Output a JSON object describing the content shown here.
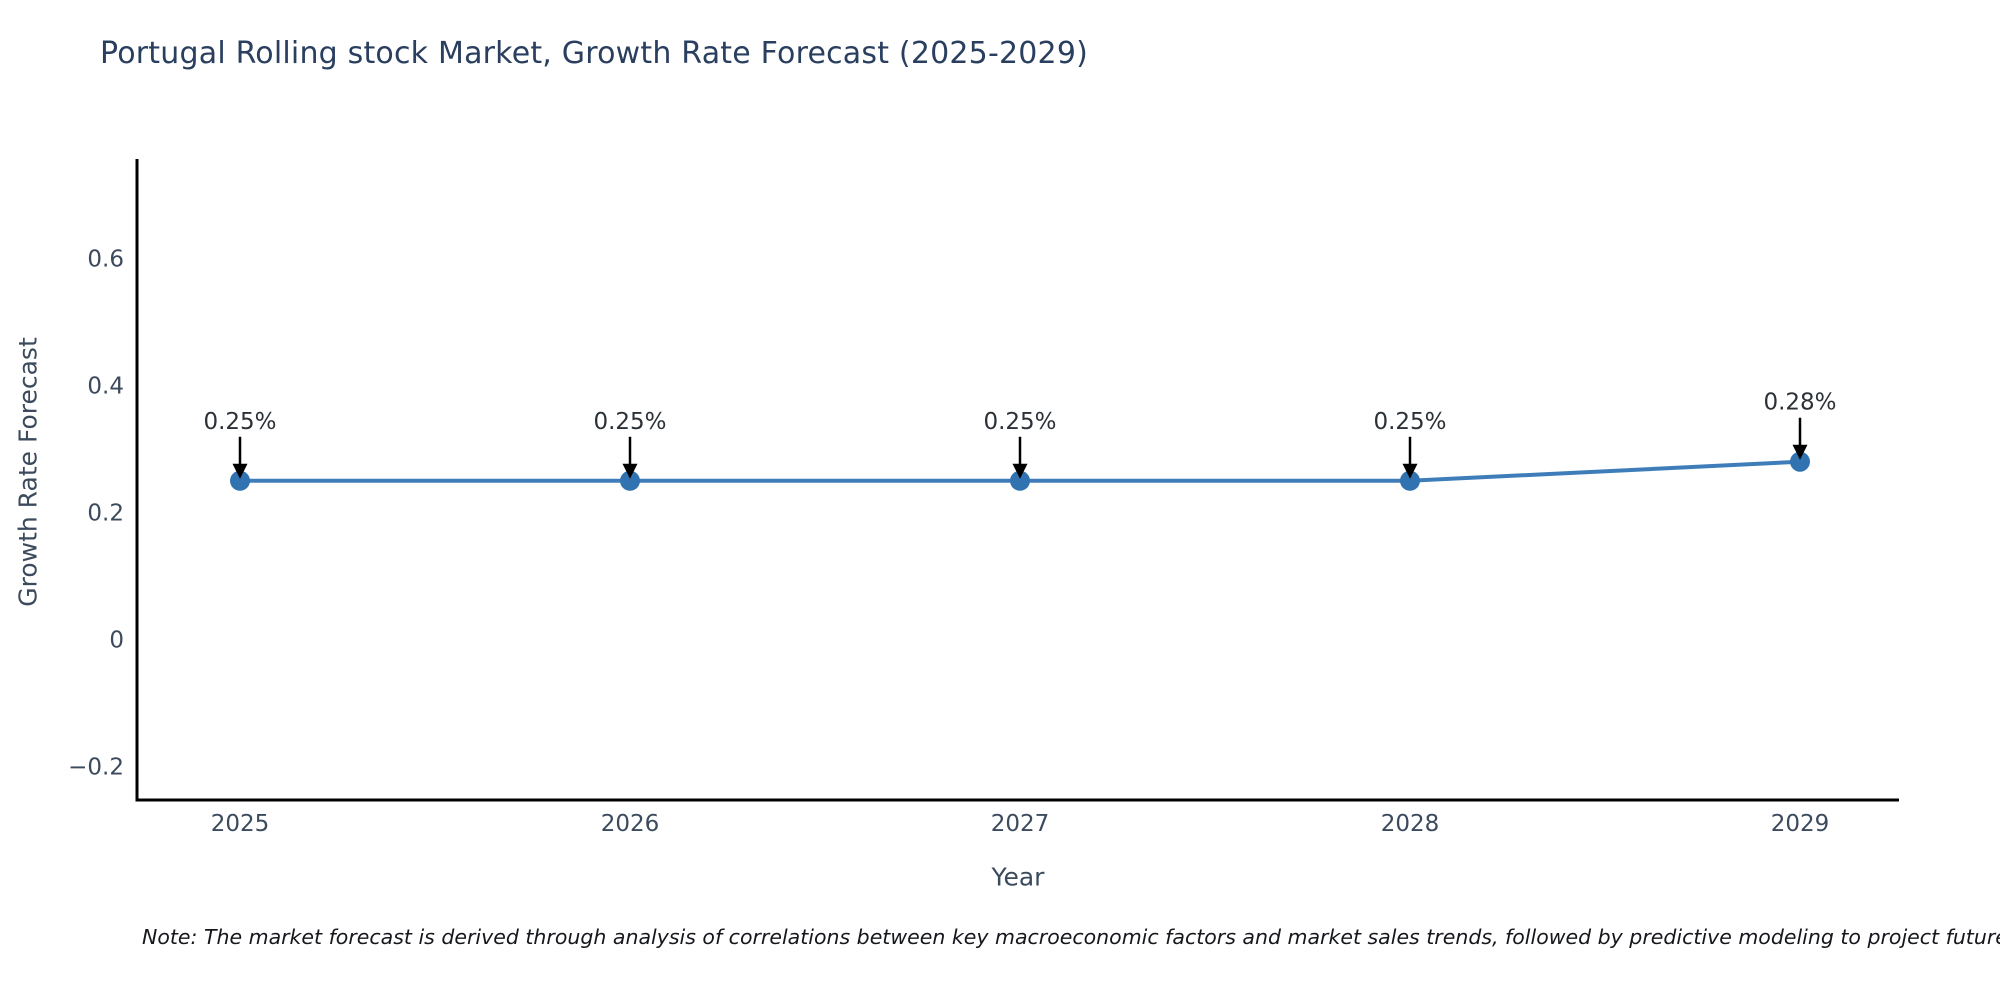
{
  "chart_data": {
    "type": "line",
    "title": "Portugal Rolling stock Market, Growth Rate Forecast (2025-2029)",
    "xlabel": "Year",
    "ylabel": "Growth Rate Forecast",
    "x": [
      2025,
      2026,
      2027,
      2028,
      2029
    ],
    "series": [
      {
        "name": "Growth Rate Forecast",
        "values": [
          0.25,
          0.25,
          0.25,
          0.25,
          0.28
        ]
      }
    ],
    "point_labels": [
      "0.25%",
      "0.25%",
      "0.25%",
      "0.25%",
      "0.28%"
    ],
    "yticks": [
      -0.2,
      0,
      0.2,
      0.4,
      0.6
    ],
    "ylim": [
      -0.253,
      0.757
    ],
    "grid": false,
    "legend_position": "none",
    "colors": {
      "line": "#3e7db9",
      "marker": "#3173b0",
      "arrow": "#000000",
      "axis": "#000000",
      "title_text": "#2a3f5f",
      "tick_text": "#3c4a5d",
      "annotation_text": "#2b3137"
    }
  },
  "note": "Note: The market forecast is derived through analysis of correlations between key macroeconomic factors and market sales trends, followed by predictive modeling to project future sales"
}
